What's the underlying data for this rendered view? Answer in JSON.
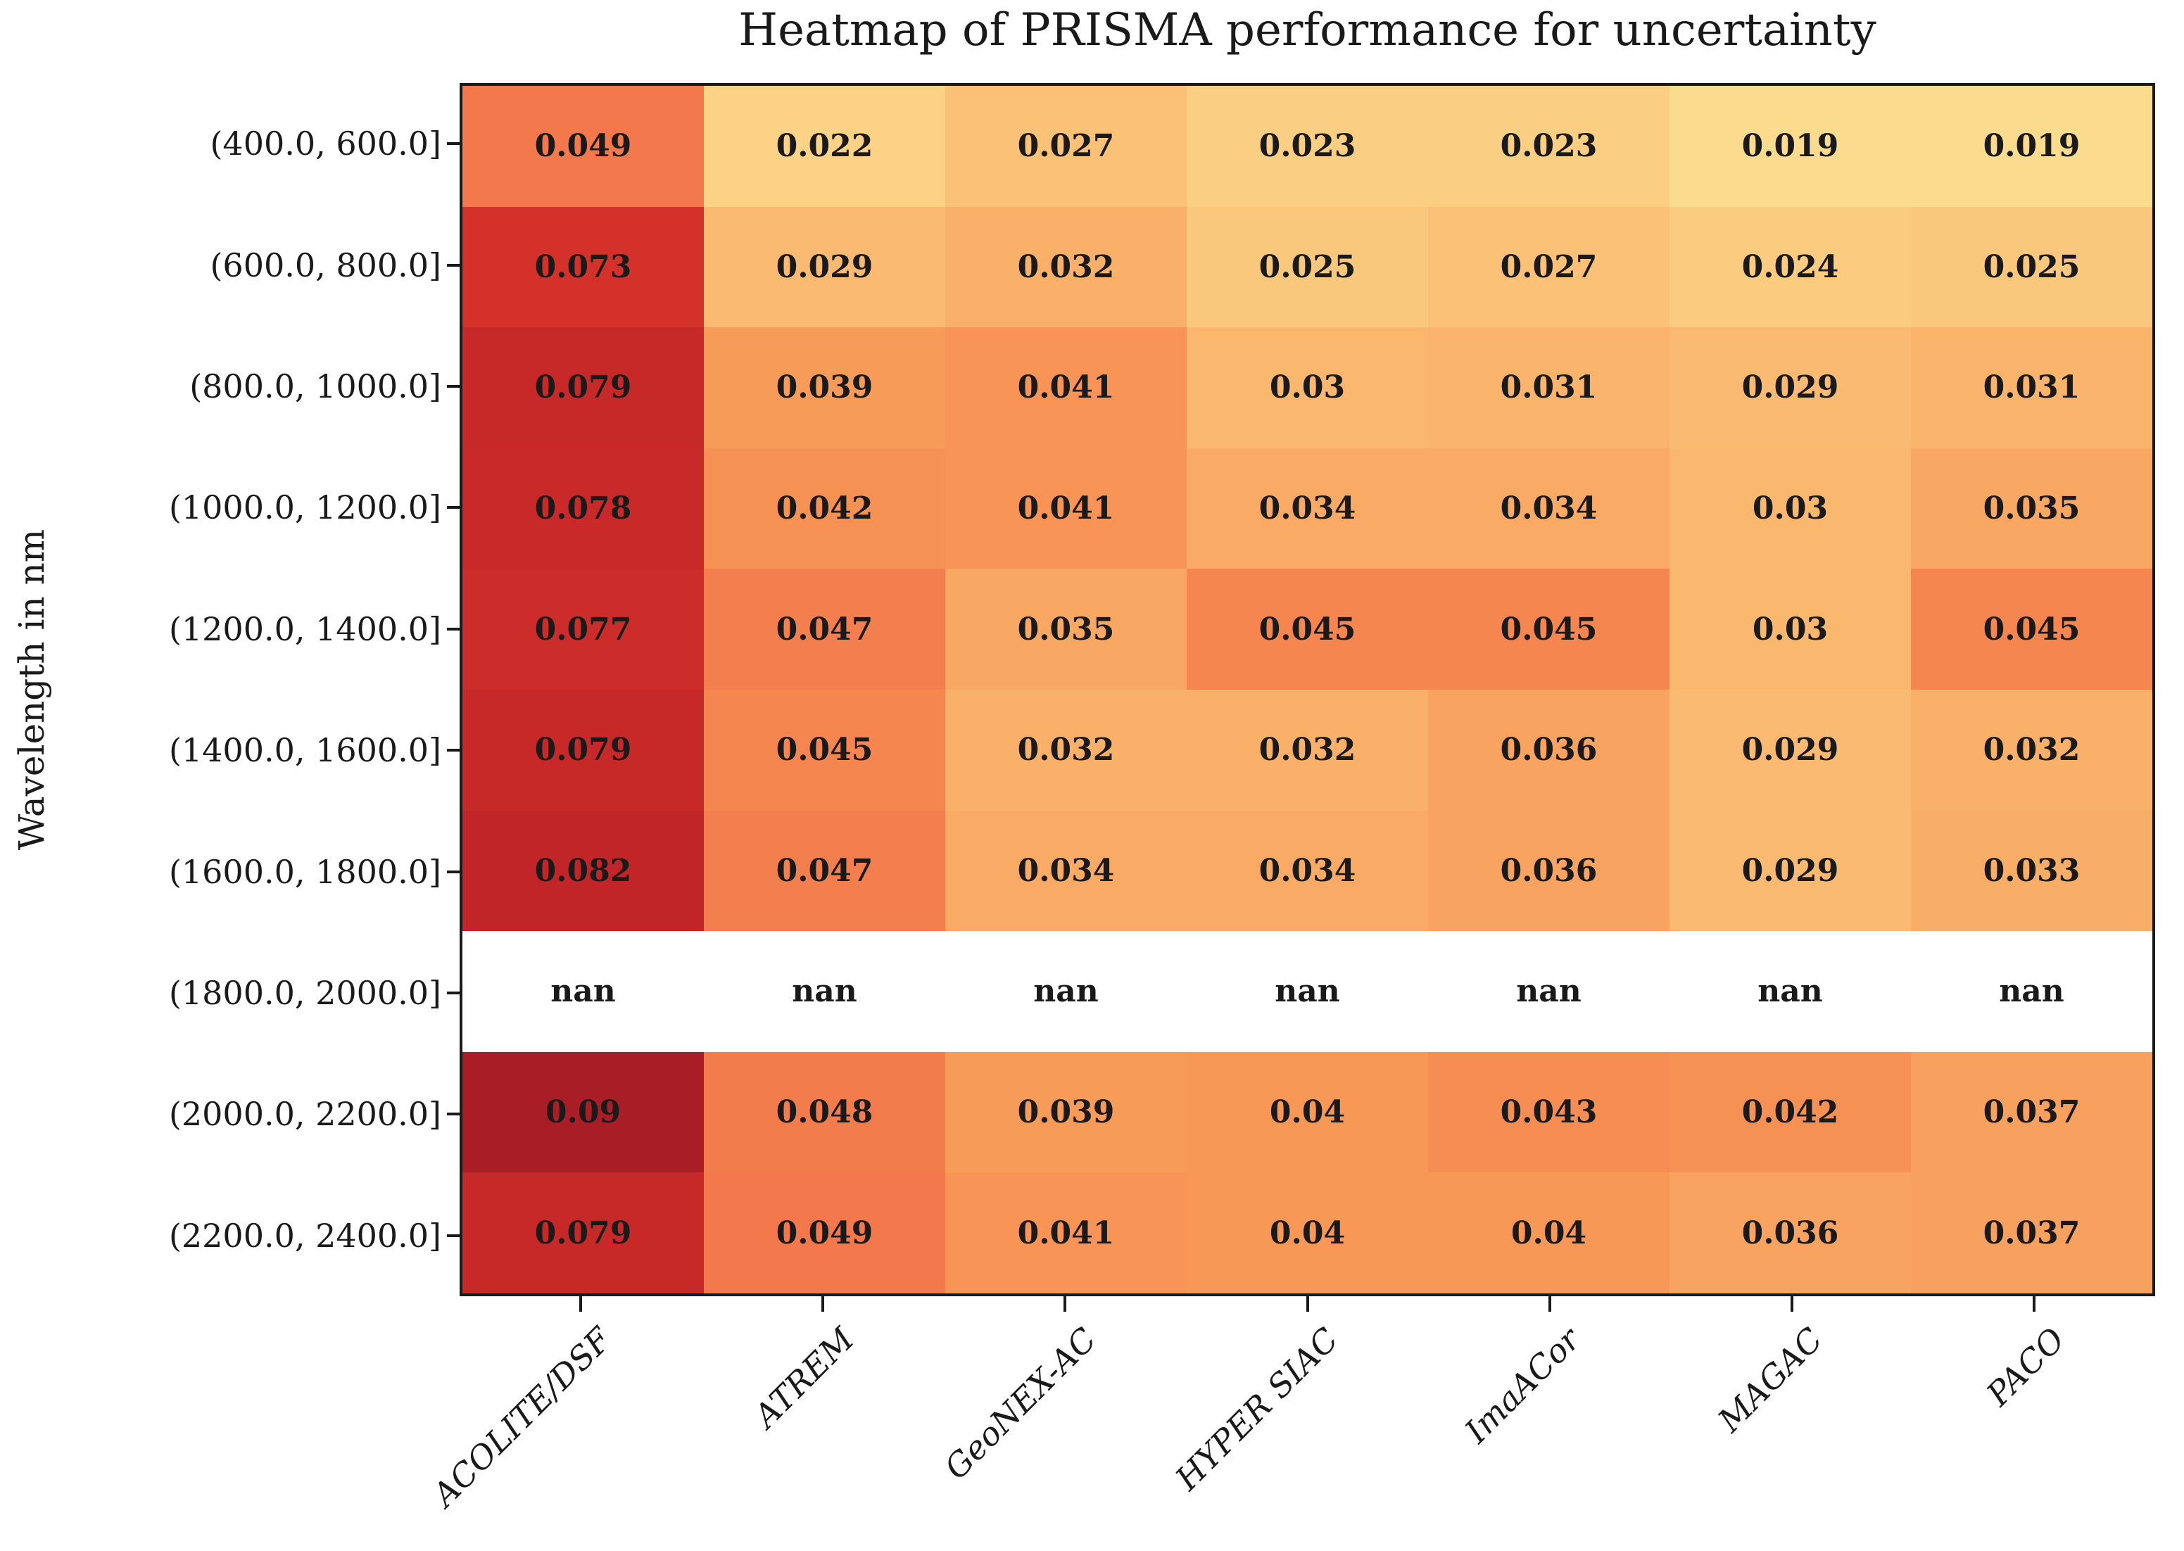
{
  "chart_data": {
    "type": "heatmap",
    "title": "Heatmap of PRISMA performance for uncertainty",
    "xlabel": "",
    "ylabel": "Wavelength in nm",
    "columns": [
      "ACOLITE/DSF",
      "ATREM",
      "GeoNEX-AC",
      "HYPER SIAC",
      "ImaACor",
      "MAGAC",
      "PACO"
    ],
    "rows": [
      "(400.0, 600.0]",
      "(600.0, 800.0]",
      "(800.0, 1000.0]",
      "(1000.0, 1200.0]",
      "(1200.0, 1400.0]",
      "(1400.0, 1600.0]",
      "(1600.0, 1800.0]",
      "(1800.0, 2000.0]",
      "(2000.0, 2200.0]",
      "(2200.0, 2400.0]"
    ],
    "values": [
      [
        0.049,
        0.022,
        0.027,
        0.023,
        0.023,
        0.019,
        0.019
      ],
      [
        0.073,
        0.029,
        0.032,
        0.025,
        0.027,
        0.024,
        0.025
      ],
      [
        0.079,
        0.039,
        0.041,
        0.03,
        0.031,
        0.029,
        0.031
      ],
      [
        0.078,
        0.042,
        0.041,
        0.034,
        0.034,
        0.03,
        0.035
      ],
      [
        0.077,
        0.047,
        0.035,
        0.045,
        0.045,
        0.03,
        0.045
      ],
      [
        0.079,
        0.045,
        0.032,
        0.032,
        0.036,
        0.029,
        0.032
      ],
      [
        0.082,
        0.047,
        0.034,
        0.034,
        0.036,
        0.029,
        0.033
      ],
      [
        null,
        null,
        null,
        null,
        null,
        null,
        null
      ],
      [
        0.09,
        0.048,
        0.039,
        0.04,
        0.043,
        0.042,
        0.037
      ],
      [
        0.079,
        0.049,
        0.041,
        0.04,
        0.04,
        0.036,
        0.037
      ]
    ],
    "nan_label": "nan",
    "annotation_color": "#1a1a1a",
    "nan_color": "#ffffff",
    "grid": false,
    "legend": "none",
    "color_scale_stops": [
      [
        0.019,
        "#fbdc8f"
      ],
      [
        0.03,
        "#fab76e"
      ],
      [
        0.04,
        "#f79857"
      ],
      [
        0.049,
        "#f3784b"
      ],
      [
        0.06,
        "#e5503a"
      ],
      [
        0.073,
        "#d4312b"
      ],
      [
        0.082,
        "#c12528"
      ],
      [
        0.09,
        "#a91d26"
      ]
    ]
  }
}
